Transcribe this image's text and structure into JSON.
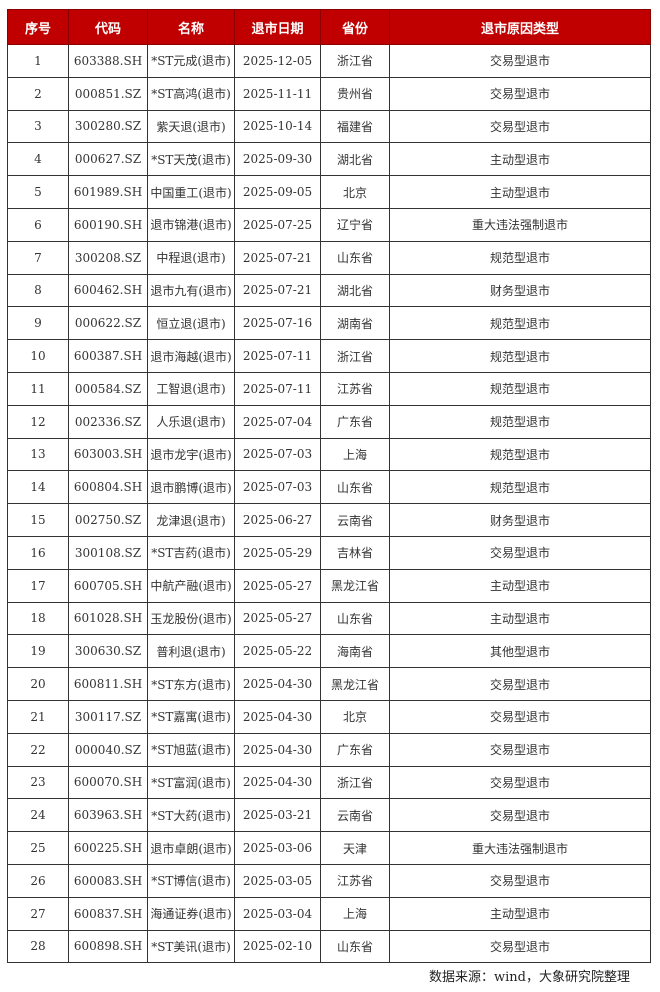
{
  "header_color": "#c00000",
  "columns": [
    "序号",
    "代码",
    "名称",
    "退市日期",
    "省份",
    "退市原因类型"
  ],
  "rows": [
    [
      "1",
      "603388.SH",
      "*ST元成(退市)",
      "2025-12-05",
      "浙江省",
      "交易型退市"
    ],
    [
      "2",
      "000851.SZ",
      "*ST高鸿(退市)",
      "2025-11-11",
      "贵州省",
      "交易型退市"
    ],
    [
      "3",
      "300280.SZ",
      "紫天退(退市)",
      "2025-10-14",
      "福建省",
      "交易型退市"
    ],
    [
      "4",
      "000627.SZ",
      "*ST天茂(退市)",
      "2025-09-30",
      "湖北省",
      "主动型退市"
    ],
    [
      "5",
      "601989.SH",
      "中国重工(退市)",
      "2025-09-05",
      "北京",
      "主动型退市"
    ],
    [
      "6",
      "600190.SH",
      "退市锦港(退市)",
      "2025-07-25",
      "辽宁省",
      "重大违法强制退市"
    ],
    [
      "7",
      "300208.SZ",
      "中程退(退市)",
      "2025-07-21",
      "山东省",
      "规范型退市"
    ],
    [
      "8",
      "600462.SH",
      "退市九有(退市)",
      "2025-07-21",
      "湖北省",
      "财务型退市"
    ],
    [
      "9",
      "000622.SZ",
      "恒立退(退市)",
      "2025-07-16",
      "湖南省",
      "规范型退市"
    ],
    [
      "10",
      "600387.SH",
      "退市海越(退市)",
      "2025-07-11",
      "浙江省",
      "规范型退市"
    ],
    [
      "11",
      "000584.SZ",
      "工智退(退市)",
      "2025-07-11",
      "江苏省",
      "规范型退市"
    ],
    [
      "12",
      "002336.SZ",
      "人乐退(退市)",
      "2025-07-04",
      "广东省",
      "规范型退市"
    ],
    [
      "13",
      "603003.SH",
      "退市龙宇(退市)",
      "2025-07-03",
      "上海",
      "规范型退市"
    ],
    [
      "14",
      "600804.SH",
      "退市鹏博(退市)",
      "2025-07-03",
      "山东省",
      "规范型退市"
    ],
    [
      "15",
      "002750.SZ",
      "龙津退(退市)",
      "2025-06-27",
      "云南省",
      "财务型退市"
    ],
    [
      "16",
      "300108.SZ",
      "*ST吉药(退市)",
      "2025-05-29",
      "吉林省",
      "交易型退市"
    ],
    [
      "17",
      "600705.SH",
      "中航产融(退市)",
      "2025-05-27",
      "黑龙江省",
      "主动型退市"
    ],
    [
      "18",
      "601028.SH",
      "玉龙股份(退市)",
      "2025-05-27",
      "山东省",
      "主动型退市"
    ],
    [
      "19",
      "300630.SZ",
      "普利退(退市)",
      "2025-05-22",
      "海南省",
      "其他型退市"
    ],
    [
      "20",
      "600811.SH",
      "*ST东方(退市)",
      "2025-04-30",
      "黑龙江省",
      "交易型退市"
    ],
    [
      "21",
      "300117.SZ",
      "*ST嘉寓(退市)",
      "2025-04-30",
      "北京",
      "交易型退市"
    ],
    [
      "22",
      "000040.SZ",
      "*ST旭蓝(退市)",
      "2025-04-30",
      "广东省",
      "交易型退市"
    ],
    [
      "23",
      "600070.SH",
      "*ST富润(退市)",
      "2025-04-30",
      "浙江省",
      "交易型退市"
    ],
    [
      "24",
      "603963.SH",
      "*ST大药(退市)",
      "2025-03-21",
      "云南省",
      "交易型退市"
    ],
    [
      "25",
      "600225.SH",
      "退市卓朗(退市)",
      "2025-03-06",
      "天津",
      "重大违法强制退市"
    ],
    [
      "26",
      "600083.SH",
      "*ST博信(退市)",
      "2025-03-05",
      "江苏省",
      "交易型退市"
    ],
    [
      "27",
      "600837.SH",
      "海通证券(退市)",
      "2025-03-04",
      "上海",
      "主动型退市"
    ],
    [
      "28",
      "600898.SH",
      "*ST美讯(退市)",
      "2025-02-10",
      "山东省",
      "交易型退市"
    ]
  ],
  "source_note": "数据来源：wind，大象研究院整理"
}
